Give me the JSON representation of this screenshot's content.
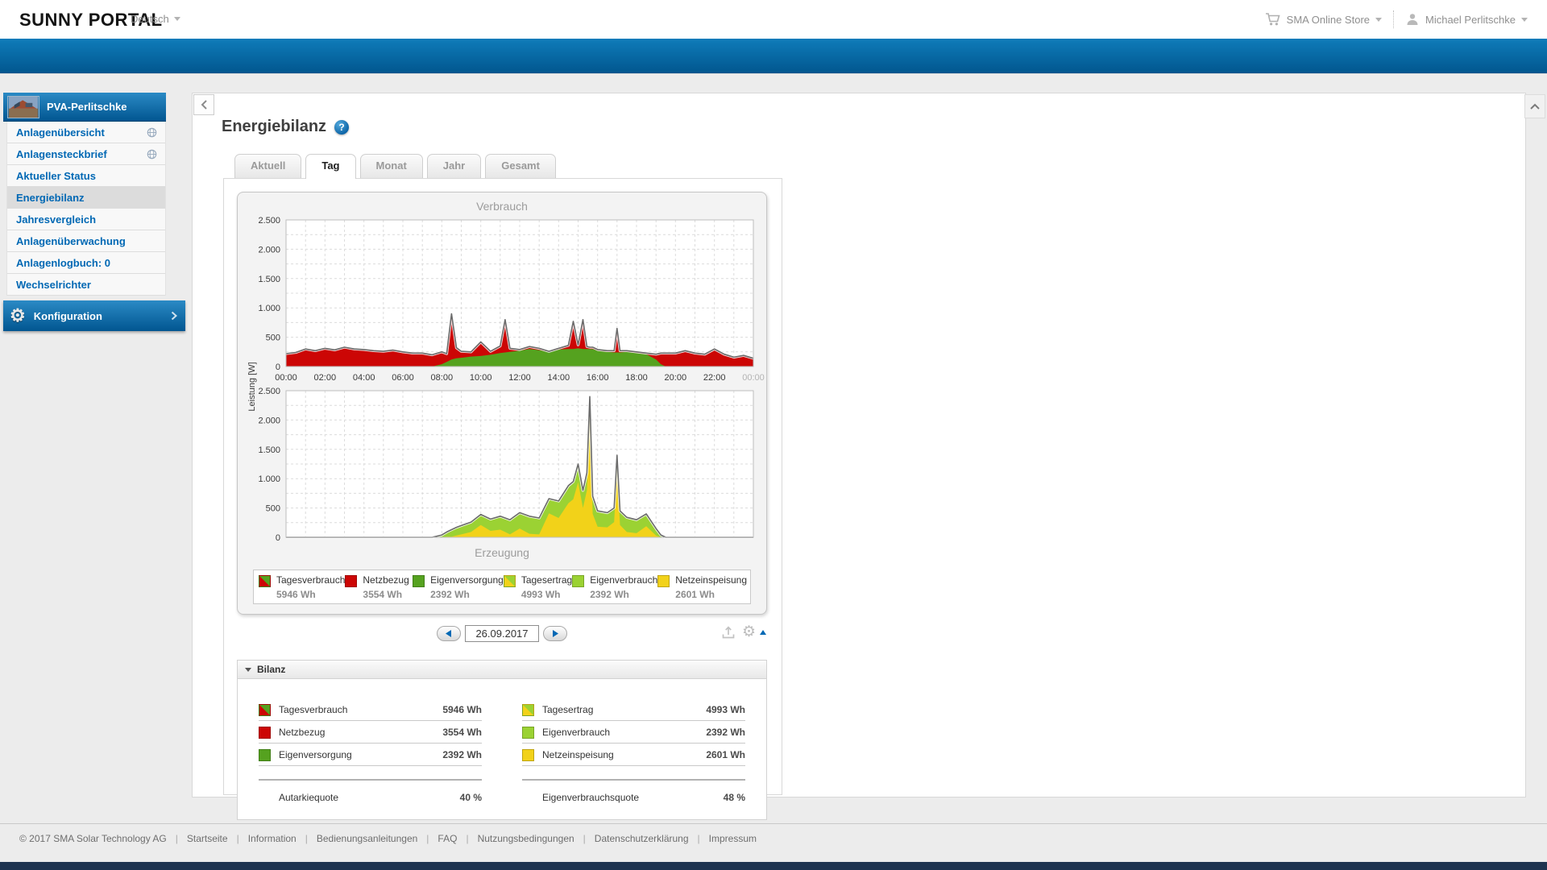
{
  "colors": {
    "sma": "#0068B4",
    "red": "#CC0605",
    "green": "#55A21F",
    "lightgreen": "#9BD233",
    "yellow": "#F2D219",
    "outline": "#6B6B6B"
  },
  "icons": {
    "gear": "⚙",
    "help": "?"
  },
  "header": {
    "logo": "SUNNY PORTAL",
    "language": "Deutsch",
    "store": "SMA Online Store",
    "user": "Michael Perlitschke"
  },
  "sidebar": {
    "plant_name": "PVA-Perlitschke",
    "items": [
      {
        "label": "Anlagenübersicht"
      },
      {
        "label": "Anlagensteckbrief"
      },
      {
        "label": "Aktueller Status"
      },
      {
        "label": "Energiebilanz"
      },
      {
        "label": "Jahresvergleich"
      },
      {
        "label": "Anlagenüberwachung"
      },
      {
        "label": "Anlagenlogbuch: 0"
      },
      {
        "label": "Wechselrichter"
      }
    ],
    "config_label": "Konfiguration"
  },
  "main": {
    "title": "Energiebilanz",
    "tabs": [
      {
        "label": "Aktuell"
      },
      {
        "label": "Tag"
      },
      {
        "label": "Monat"
      },
      {
        "label": "Jahr"
      },
      {
        "label": "Gesamt"
      }
    ],
    "date": "26.09.2017"
  },
  "legend": {
    "items": [
      {
        "label": "Tagesverbrauch",
        "value": "5946 Wh"
      },
      {
        "label": "Netzbezug",
        "value": "3554 Wh"
      },
      {
        "label": "Eigenversorgung",
        "value": "2392 Wh"
      },
      {
        "label": "Tagesertrag",
        "value": "4993 Wh"
      },
      {
        "label": "Eigenverbrauch",
        "value": "2392 Wh"
      },
      {
        "label": "Netzeinspeisung",
        "value": "2601 Wh"
      }
    ]
  },
  "bilanz": {
    "title": "Bilanz",
    "left_rows": [
      {
        "label": "Tagesverbrauch",
        "value": "5946 Wh"
      },
      {
        "label": "Netzbezug",
        "value": "3554 Wh"
      },
      {
        "label": "Eigenversorgung",
        "value": "2392 Wh"
      }
    ],
    "right_rows": [
      {
        "label": "Tagesertrag",
        "value": "4993 Wh"
      },
      {
        "label": "Eigenverbrauch",
        "value": "2392 Wh"
      },
      {
        "label": "Netzeinspeisung",
        "value": "2601 Wh"
      }
    ],
    "left_quote": {
      "label": "Autarkiequote",
      "value": "40 %"
    },
    "right_quote": {
      "label": "Eigenverbrauchsquote",
      "value": "48 %"
    }
  },
  "footer": {
    "items": [
      "© 2017 SMA Solar Technology AG",
      "Startseite",
      "Information",
      "Bedienungsanleitungen",
      "FAQ",
      "Nutzungsbedingungen",
      "Datenschutzerklärung",
      "Impressum"
    ]
  },
  "chart_data": [
    {
      "type": "area",
      "title": "Verbrauch",
      "ylabel": "Leistung [W]",
      "unit": "W",
      "stacked": true,
      "grid": true,
      "ylim": [
        0,
        2500
      ],
      "yticklabels": [
        "0",
        "500",
        "1.000",
        "1.500",
        "2.000",
        "2.500"
      ],
      "xticklabels": [
        "00:00",
        "02:00",
        "04:00",
        "06:00",
        "08:00",
        "10:00",
        "12:00",
        "14:00",
        "16:00",
        "18:00",
        "20:00",
        "22:00",
        "00:00"
      ],
      "x_hours": [
        0,
        0.5,
        1,
        1.5,
        2,
        2.5,
        3,
        3.5,
        4,
        4.5,
        5,
        5.5,
        6,
        6.5,
        7,
        7.5,
        8,
        8.25,
        8.5,
        8.75,
        9,
        9.5,
        10,
        10.5,
        11,
        11.25,
        11.5,
        12,
        12.5,
        13,
        13.5,
        14,
        14.5,
        14.75,
        15,
        15.25,
        15.45,
        15.6,
        15.75,
        16,
        16.5,
        16.85,
        17,
        17.15,
        17.5,
        18,
        18.5,
        19,
        19.25,
        19.5,
        20,
        20.5,
        21,
        21.5,
        22,
        22.5,
        23,
        23.5,
        24
      ],
      "series": [
        {
          "name": "Eigenversorgung",
          "color_key": "green",
          "values": [
            0,
            0,
            0,
            0,
            0,
            0,
            0,
            0,
            0,
            0,
            0,
            0,
            0,
            0,
            0,
            0,
            40,
            80,
            120,
            140,
            150,
            170,
            180,
            200,
            230,
            240,
            250,
            270,
            300,
            280,
            250,
            290,
            300,
            300,
            310,
            300,
            300,
            300,
            300,
            270,
            250,
            240,
            240,
            240,
            250,
            230,
            210,
            120,
            40,
            0,
            0,
            0,
            0,
            0,
            0,
            0,
            0,
            0,
            0
          ]
        },
        {
          "name": "Netzbezug",
          "color_key": "red",
          "values": [
            220,
            240,
            300,
            270,
            310,
            285,
            330,
            300,
            290,
            270,
            260,
            280,
            250,
            230,
            230,
            200,
            210,
            140,
            780,
            180,
            110,
            80,
            240,
            60,
            120,
            560,
            60,
            20,
            40,
            30,
            10,
            20,
            60,
            470,
            60,
            500,
            40,
            30,
            30,
            20,
            20,
            30,
            410,
            30,
            20,
            20,
            20,
            90,
            190,
            230,
            230,
            270,
            230,
            210,
            300,
            210,
            160,
            190,
            140
          ]
        }
      ]
    },
    {
      "type": "area",
      "title": "Erzeugung",
      "ylabel": "Leistung [W]",
      "unit": "W",
      "stacked": true,
      "grid": true,
      "ylim": [
        0,
        2500
      ],
      "yticklabels": [
        "0",
        "500",
        "1.000",
        "1.500",
        "2.000",
        "2.500"
      ],
      "xticklabels": [
        "00:00",
        "02:00",
        "04:00",
        "06:00",
        "08:00",
        "10:00",
        "12:00",
        "14:00",
        "16:00",
        "18:00",
        "20:00",
        "22:00",
        "00:00"
      ],
      "x_hours": [
        0,
        0.5,
        1,
        1.5,
        2,
        2.5,
        3,
        3.5,
        4,
        4.5,
        5,
        5.5,
        6,
        6.5,
        7,
        7.5,
        8,
        8.25,
        8.5,
        8.75,
        9,
        9.5,
        10,
        10.5,
        11,
        11.25,
        11.5,
        12,
        12.5,
        13,
        13.5,
        14,
        14.5,
        14.75,
        15,
        15.25,
        15.45,
        15.6,
        15.75,
        16,
        16.5,
        16.85,
        17,
        17.15,
        17.5,
        18,
        18.5,
        19,
        19.25,
        19.5,
        20,
        20.5,
        21,
        21.5,
        22,
        22.5,
        23,
        23.5,
        24
      ],
      "series": [
        {
          "name": "Netzeinspeisung",
          "color_key": "yellow",
          "values": [
            0,
            0,
            0,
            0,
            0,
            0,
            0,
            0,
            0,
            0,
            0,
            0,
            0,
            0,
            0,
            0,
            0,
            10,
            10,
            30,
            50,
            90,
            210,
            110,
            130,
            90,
            50,
            150,
            60,
            50,
            410,
            330,
            580,
            650,
            940,
            500,
            800,
            2100,
            400,
            180,
            170,
            260,
            1160,
            210,
            90,
            70,
            190,
            30,
            0,
            0,
            0,
            0,
            0,
            0,
            0,
            0,
            0,
            0,
            0
          ]
        },
        {
          "name": "Eigenverbrauch",
          "color_key": "lightgreen",
          "values": [
            0,
            0,
            0,
            0,
            0,
            0,
            0,
            0,
            0,
            0,
            0,
            0,
            0,
            0,
            0,
            0,
            40,
            80,
            120,
            140,
            150,
            170,
            180,
            200,
            230,
            240,
            250,
            270,
            300,
            280,
            250,
            290,
            300,
            300,
            310,
            300,
            300,
            300,
            300,
            270,
            250,
            240,
            240,
            240,
            250,
            230,
            210,
            120,
            40,
            0,
            0,
            0,
            0,
            0,
            0,
            0,
            0,
            0,
            0
          ]
        }
      ]
    }
  ]
}
